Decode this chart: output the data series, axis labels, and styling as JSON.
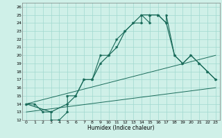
{
  "title": "",
  "xlabel": "Humidex (Indice chaleur)",
  "bg_color": "#cff0e8",
  "grid_color": "#a0d8cf",
  "line_color": "#1a6b5a",
  "xlim": [
    -0.5,
    23.5
  ],
  "ylim": [
    12,
    26.5
  ],
  "yticks": [
    12,
    13,
    14,
    15,
    16,
    17,
    18,
    19,
    20,
    21,
    22,
    23,
    24,
    25,
    26
  ],
  "xticks": [
    0,
    1,
    2,
    3,
    4,
    5,
    6,
    7,
    8,
    9,
    10,
    11,
    12,
    13,
    14,
    15,
    16,
    17,
    18,
    19,
    20,
    21,
    22,
    23
  ],
  "series1_x": [
    0,
    1,
    2,
    3,
    3,
    4,
    4,
    5,
    5,
    6,
    7,
    8,
    9,
    10,
    11,
    12,
    13,
    14,
    14,
    15,
    15,
    16,
    16,
    17,
    17,
    18,
    19,
    20,
    21,
    22,
    23
  ],
  "series1_y": [
    14,
    14,
    13,
    13,
    12,
    12,
    12,
    13,
    15,
    15,
    17,
    17,
    20,
    20,
    22,
    23,
    24,
    24,
    25,
    24,
    25,
    25,
    25,
    24,
    25,
    20,
    19,
    20,
    19,
    18,
    17
  ],
  "series2_x": [
    0,
    3,
    5,
    6,
    7,
    8,
    9,
    10,
    11,
    12,
    13,
    14,
    15,
    15,
    16,
    16,
    17,
    18,
    19,
    20,
    21,
    22,
    23
  ],
  "series2_y": [
    14,
    13,
    14,
    15,
    17,
    17,
    19,
    20,
    21,
    23,
    24,
    25,
    25,
    25,
    25,
    25,
    24,
    20,
    19,
    20,
    19,
    18,
    17
  ],
  "series3_x": [
    0,
    23
  ],
  "series3_y": [
    14,
    20
  ],
  "series4_x": [
    0,
    23
  ],
  "series4_y": [
    13,
    16
  ]
}
